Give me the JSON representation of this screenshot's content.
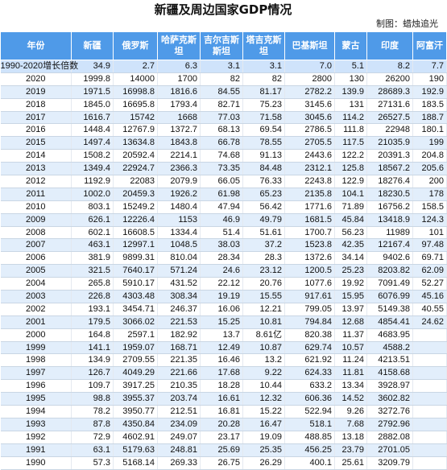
{
  "title": "新疆及周边国家GDP情况",
  "credit": "制图：蜡烛追光",
  "headers": [
    "年份",
    "新疆",
    "俄罗斯",
    "哈萨克斯\n坦",
    "吉尔吉斯\n斯坦",
    "塔吉克斯\n坦",
    "巴基斯坦",
    "蒙古",
    "印度",
    "阿富汗"
  ],
  "rows": [
    [
      "1990-2020增长倍数",
      "34.9",
      "2.7",
      "6.3",
      "3.1",
      "3.1",
      "7.0",
      "5.1",
      "8.2",
      "7.7"
    ],
    [
      "2020",
      "1999.8",
      "14000",
      "1700",
      "82",
      "82",
      "2800",
      "130",
      "26200",
      "190"
    ],
    [
      "2019",
      "1971.5",
      "16998.8",
      "1816.6",
      "84.55",
      "81.17",
      "2782.2",
      "139.9",
      "28689.3",
      "192.9"
    ],
    [
      "2018",
      "1845.0",
      "16695.8",
      "1793.4",
      "82.71",
      "75.23",
      "3145.6",
      "131",
      "27131.6",
      "183.5"
    ],
    [
      "2017",
      "1616.7",
      "15742",
      "1668",
      "77.03",
      "71.58",
      "3045.6",
      "114.2",
      "26527.5",
      "188.7"
    ],
    [
      "2016",
      "1448.4",
      "12767.9",
      "1372.7",
      "68.13",
      "69.54",
      "2786.5",
      "111.8",
      "22948",
      "180.1"
    ],
    [
      "2015",
      "1497.4",
      "13634.8",
      "1843.8",
      "66.78",
      "78.55",
      "2705.5",
      "117.5",
      "21035.9",
      "199"
    ],
    [
      "2014",
      "1508.2",
      "20592.4",
      "2214.1",
      "74.68",
      "91.13",
      "2443.6",
      "122.2",
      "20391.3",
      "204.8"
    ],
    [
      "2013",
      "1349.4",
      "22924.7",
      "2366.3",
      "73.35",
      "84.48",
      "2312.1",
      "125.8",
      "18567.2",
      "205.6"
    ],
    [
      "2012",
      "1192.9",
      "22083",
      "2079.9",
      "66.05",
      "76.33",
      "2243.8",
      "122.9",
      "18276.4",
      "200"
    ],
    [
      "2011",
      "1002.0",
      "20459.3",
      "1926.2",
      "61.98",
      "65.23",
      "2135.8",
      "104.1",
      "18230.5",
      "178"
    ],
    [
      "2010",
      "803.1",
      "15249.2",
      "1480.4",
      "47.94",
      "56.42",
      "1771.6",
      "71.89",
      "16756.2",
      "158.5"
    ],
    [
      "2009",
      "626.1",
      "12226.4",
      "1153",
      "46.9",
      "49.79",
      "1681.5",
      "45.84",
      "13418.9",
      "124.3"
    ],
    [
      "2008",
      "602.1",
      "16608.5",
      "1334.4",
      "51.4",
      "51.61",
      "1700.7",
      "56.23",
      "11989",
      "101"
    ],
    [
      "2007",
      "463.1",
      "12997.1",
      "1048.5",
      "38.03",
      "37.2",
      "1523.8",
      "42.35",
      "12167.4",
      "97.48"
    ],
    [
      "2006",
      "381.9",
      "9899.31",
      "810.04",
      "28.34",
      "28.3",
      "1372.6",
      "34.14",
      "9402.6",
      "69.71"
    ],
    [
      "2005",
      "321.5",
      "7640.17",
      "571.24",
      "24.6",
      "23.12",
      "1200.5",
      "25.23",
      "8203.82",
      "62.09"
    ],
    [
      "2004",
      "265.8",
      "5910.17",
      "431.52",
      "22.12",
      "20.76",
      "1077.6",
      "19.92",
      "7091.49",
      "52.27"
    ],
    [
      "2003",
      "226.8",
      "4303.48",
      "308.34",
      "19.19",
      "15.55",
      "917.61",
      "15.95",
      "6076.99",
      "45.16"
    ],
    [
      "2002",
      "193.1",
      "3454.71",
      "246.37",
      "16.06",
      "12.21",
      "799.05",
      "13.97",
      "5149.38",
      "40.55"
    ],
    [
      "2001",
      "179.5",
      "3066.02",
      "221.53",
      "15.25",
      "10.81",
      "794.84",
      "12.68",
      "4854.41",
      "24.62"
    ],
    [
      "2000",
      "164.8",
      "2597.1",
      "182.92",
      "13.7",
      "8.61亿",
      "820.38",
      "11.37",
      "4683.95",
      ""
    ],
    [
      "1999",
      "141.1",
      "1959.07",
      "168.71",
      "12.49",
      "10.87",
      "629.74",
      "10.57",
      "4588.2",
      ""
    ],
    [
      "1998",
      "134.9",
      "2709.55",
      "221.35",
      "16.46",
      "13.2",
      "621.92",
      "11.24",
      "4213.51",
      ""
    ],
    [
      "1997",
      "126.7",
      "4049.29",
      "221.66",
      "17.68",
      "9.22",
      "624.33",
      "11.81",
      "4158.68",
      ""
    ],
    [
      "1996",
      "109.7",
      "3917.25",
      "210.35",
      "18.28",
      "10.44",
      "633.2",
      "13.34",
      "3928.97",
      ""
    ],
    [
      "1995",
      "98.8",
      "3955.37",
      "203.74",
      "16.61",
      "12.32",
      "606.36",
      "14.52",
      "3602.82",
      ""
    ],
    [
      "1994",
      "78.2",
      "3950.77",
      "212.51",
      "16.81",
      "15.22",
      "522.94",
      "9.26",
      "3272.76",
      ""
    ],
    [
      "1993",
      "87.8",
      "4350.84",
      "234.09",
      "20.28",
      "16.47",
      "518.1",
      "7.68",
      "2792.96",
      ""
    ],
    [
      "1992",
      "72.9",
      "4602.91",
      "249.07",
      "23.17",
      "19.09",
      "488.85",
      "13.18",
      "2882.08",
      ""
    ],
    [
      "1991",
      "63.1",
      "5179.63",
      "248.81",
      "25.69",
      "25.35",
      "456.25",
      "23.79",
      "2701.05",
      ""
    ],
    [
      "1990",
      "57.3",
      "5168.14",
      "269.33",
      "26.75",
      "26.29",
      "400.1",
      "25.61",
      "3209.79",
      ""
    ]
  ]
}
